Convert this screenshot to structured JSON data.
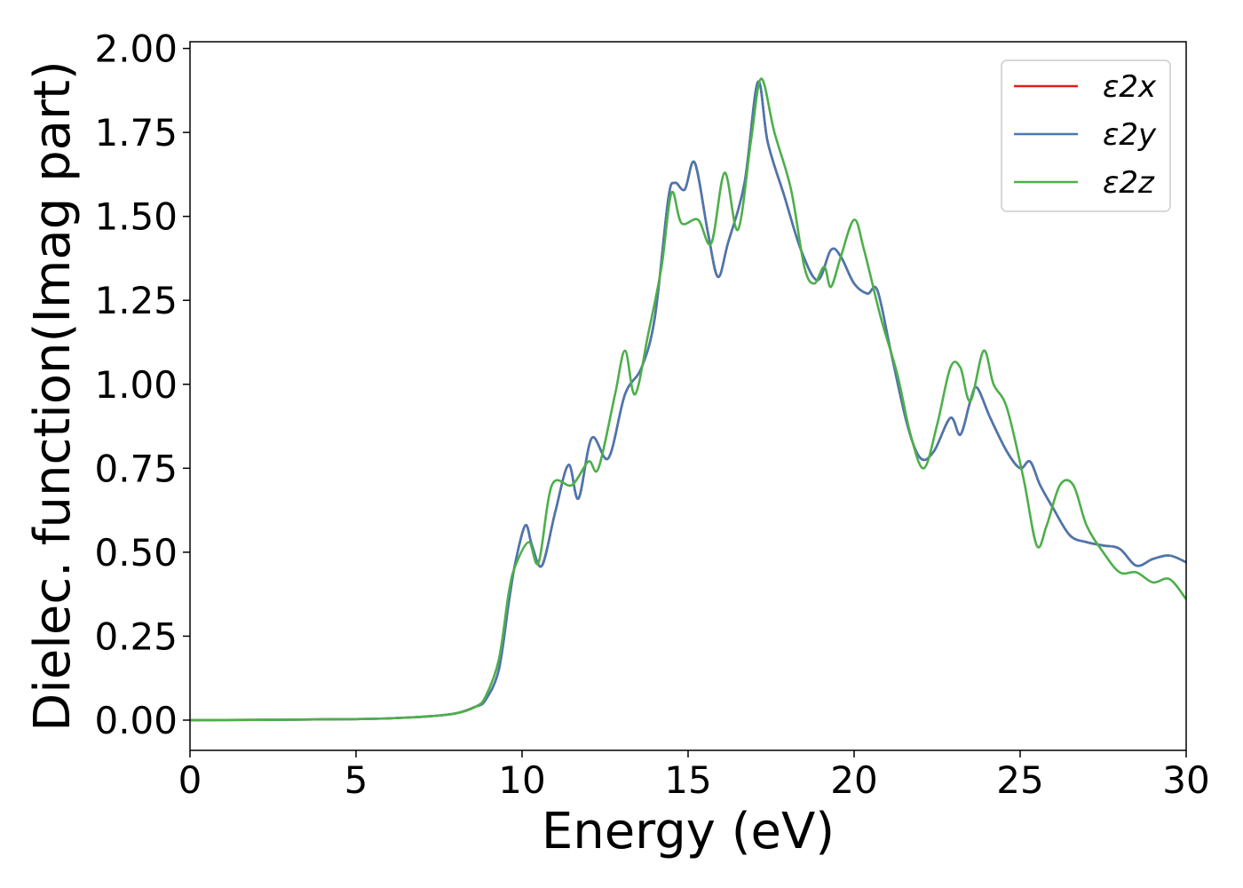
{
  "chart_data": {
    "type": "line",
    "xlabel": "Energy (eV)",
    "ylabel": "Dielec. function(Imag part)",
    "xlim": [
      0,
      30
    ],
    "ylim": [
      -0.09,
      2.02
    ],
    "xticks": [
      0,
      5,
      10,
      15,
      20,
      25,
      30
    ],
    "xtick_labels": [
      "0",
      "5",
      "10",
      "15",
      "20",
      "25",
      "30"
    ],
    "yticks": [
      0.0,
      0.25,
      0.5,
      0.75,
      1.0,
      1.25,
      1.5,
      1.75,
      2.0
    ],
    "ytick_labels": [
      "0.00",
      "0.25",
      "0.50",
      "0.75",
      "1.00",
      "1.25",
      "1.50",
      "1.75",
      "2.00"
    ],
    "grid": false,
    "legend_position": "upper-right",
    "series": [
      {
        "name": "ε2x",
        "color": "#e41a1c",
        "x": [
          0,
          5,
          7,
          8,
          8.6,
          8.9,
          9.3,
          9.6,
          9.8,
          10.1,
          10.3,
          10.6,
          11.0,
          11.4,
          11.7,
          12.1,
          12.6,
          13.1,
          13.6,
          14.0,
          14.4,
          14.6,
          14.9,
          15.2,
          15.6,
          15.9,
          16.2,
          16.7,
          17.1,
          17.4,
          17.9,
          18.4,
          18.9,
          19.3,
          19.6,
          20.0,
          20.4,
          20.7,
          21.1,
          21.6,
          22.0,
          22.4,
          22.9,
          23.2,
          23.5,
          23.7,
          24.1,
          24.6,
          25.0,
          25.3,
          25.6,
          26.0,
          26.5,
          27.0,
          27.5,
          28.0,
          28.5,
          29.0,
          29.5,
          30.0
        ],
        "y": [
          0.0,
          0.003,
          0.01,
          0.02,
          0.04,
          0.06,
          0.15,
          0.35,
          0.47,
          0.58,
          0.52,
          0.46,
          0.62,
          0.76,
          0.66,
          0.84,
          0.78,
          0.97,
          1.05,
          1.2,
          1.55,
          1.6,
          1.58,
          1.66,
          1.45,
          1.32,
          1.42,
          1.6,
          1.9,
          1.72,
          1.56,
          1.4,
          1.31,
          1.4,
          1.38,
          1.3,
          1.27,
          1.28,
          1.1,
          0.88,
          0.78,
          0.8,
          0.9,
          0.85,
          0.95,
          0.99,
          0.9,
          0.8,
          0.75,
          0.77,
          0.7,
          0.63,
          0.55,
          0.53,
          0.52,
          0.51,
          0.46,
          0.48,
          0.49,
          0.47
        ]
      },
      {
        "name": "ε2y",
        "color": "#4878b0",
        "x": [
          0,
          5,
          7,
          8,
          8.6,
          8.9,
          9.3,
          9.6,
          9.8,
          10.1,
          10.3,
          10.6,
          11.0,
          11.4,
          11.7,
          12.1,
          12.6,
          13.1,
          13.6,
          14.0,
          14.4,
          14.6,
          14.9,
          15.2,
          15.6,
          15.9,
          16.2,
          16.7,
          17.1,
          17.4,
          17.9,
          18.4,
          18.9,
          19.3,
          19.6,
          20.0,
          20.4,
          20.7,
          21.1,
          21.6,
          22.0,
          22.4,
          22.9,
          23.2,
          23.5,
          23.7,
          24.1,
          24.6,
          25.0,
          25.3,
          25.6,
          26.0,
          26.5,
          27.0,
          27.5,
          28.0,
          28.5,
          29.0,
          29.5,
          30.0
        ],
        "y": [
          0.0,
          0.003,
          0.01,
          0.02,
          0.04,
          0.06,
          0.15,
          0.35,
          0.47,
          0.58,
          0.52,
          0.46,
          0.62,
          0.76,
          0.66,
          0.84,
          0.78,
          0.97,
          1.05,
          1.2,
          1.55,
          1.6,
          1.58,
          1.66,
          1.45,
          1.32,
          1.42,
          1.6,
          1.9,
          1.72,
          1.56,
          1.4,
          1.31,
          1.4,
          1.38,
          1.3,
          1.27,
          1.28,
          1.1,
          0.88,
          0.78,
          0.8,
          0.9,
          0.85,
          0.95,
          0.99,
          0.9,
          0.8,
          0.75,
          0.77,
          0.7,
          0.63,
          0.55,
          0.53,
          0.52,
          0.51,
          0.46,
          0.48,
          0.49,
          0.47
        ]
      },
      {
        "name": "ε2z",
        "color": "#4daf4a",
        "x": [
          0,
          5,
          7,
          8,
          8.6,
          8.9,
          9.3,
          9.6,
          9.8,
          10.2,
          10.5,
          10.9,
          11.5,
          12.0,
          12.3,
          12.8,
          13.1,
          13.4,
          13.8,
          14.2,
          14.5,
          14.8,
          15.3,
          15.7,
          16.1,
          16.5,
          16.9,
          17.2,
          17.6,
          18.1,
          18.5,
          18.8,
          19.1,
          19.3,
          19.6,
          20.0,
          20.3,
          20.8,
          21.3,
          21.7,
          22.1,
          22.5,
          22.9,
          23.2,
          23.5,
          23.9,
          24.2,
          24.6,
          25.1,
          25.5,
          25.8,
          26.2,
          26.6,
          27.0,
          27.5,
          28.0,
          28.5,
          29.0,
          29.5,
          30.0
        ],
        "y": [
          0.0,
          0.003,
          0.01,
          0.02,
          0.04,
          0.07,
          0.18,
          0.38,
          0.46,
          0.53,
          0.47,
          0.7,
          0.7,
          0.77,
          0.75,
          0.97,
          1.1,
          0.97,
          1.15,
          1.35,
          1.57,
          1.48,
          1.49,
          1.42,
          1.63,
          1.46,
          1.73,
          1.91,
          1.75,
          1.58,
          1.35,
          1.3,
          1.35,
          1.29,
          1.38,
          1.49,
          1.4,
          1.2,
          1.03,
          0.85,
          0.75,
          0.88,
          1.05,
          1.05,
          0.95,
          1.1,
          1.0,
          0.93,
          0.72,
          0.52,
          0.58,
          0.7,
          0.7,
          0.58,
          0.5,
          0.44,
          0.44,
          0.41,
          0.42,
          0.36
        ]
      }
    ]
  }
}
